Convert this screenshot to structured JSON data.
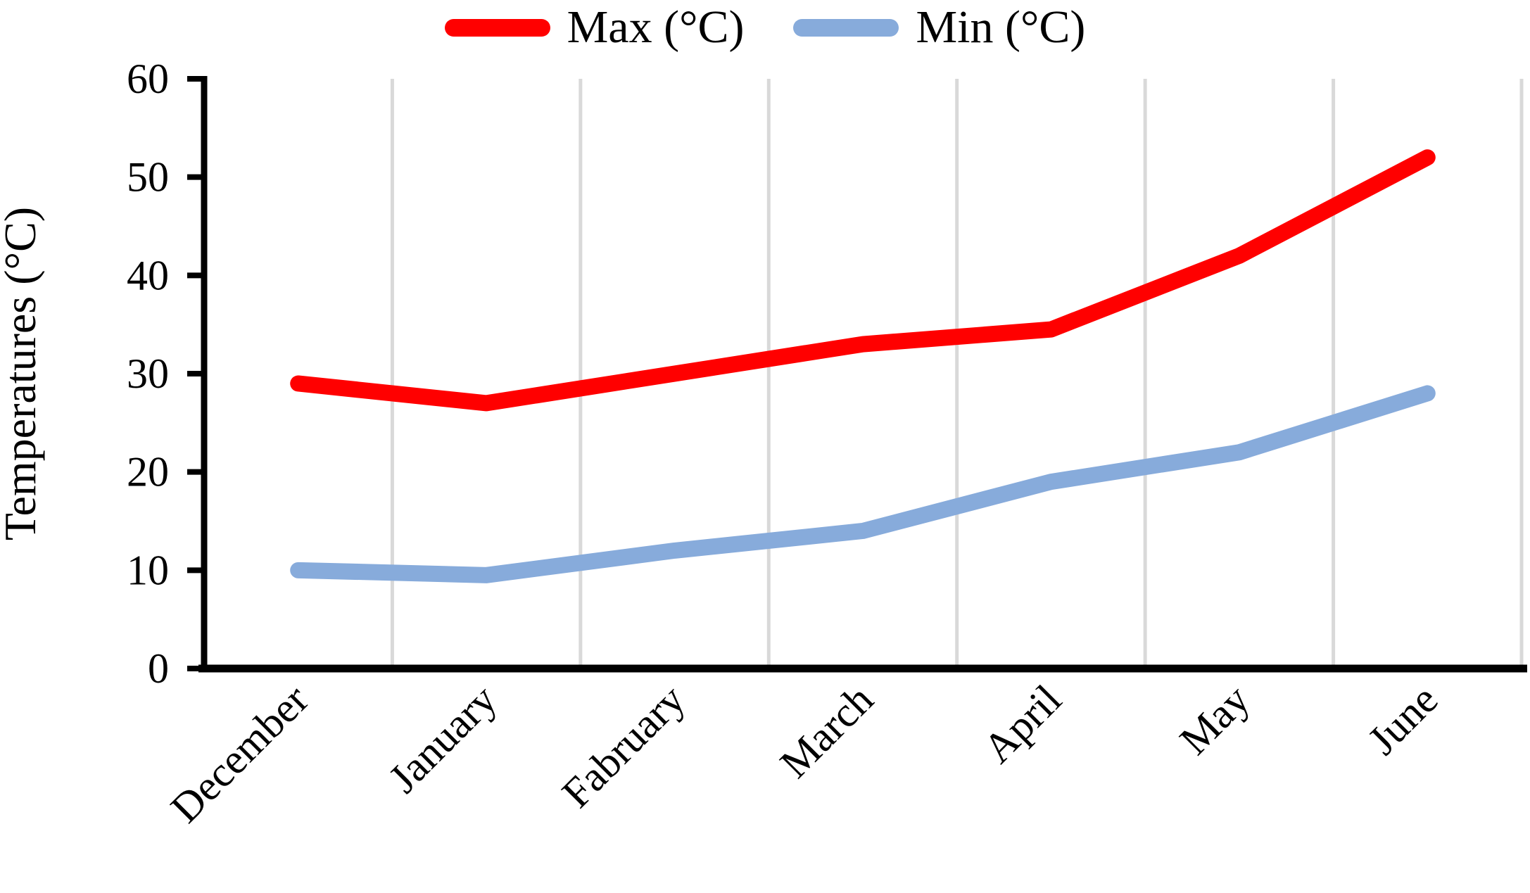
{
  "chart_data": {
    "type": "line",
    "title": "",
    "categories": [
      "December",
      "January",
      "Fabruary",
      "March",
      "April",
      "May",
      "June"
    ],
    "series": [
      {
        "name": "Max (°C)",
        "color": "#ff0000",
        "values": [
          29,
          27,
          30,
          33,
          34.5,
          42,
          52
        ]
      },
      {
        "name": "Min (°C)",
        "color": "#87abdb",
        "values": [
          10,
          9.5,
          12,
          14,
          19,
          22,
          28
        ]
      }
    ],
    "xlabel": "",
    "ylabel": "Temperatures (°C)",
    "ylim": [
      0,
      60
    ],
    "yticks": [
      0,
      10,
      20,
      30,
      40,
      50,
      60
    ],
    "grid": "vertical-between-categories",
    "legend_position": "top",
    "x_label_rotation_deg": 45,
    "colors": {
      "gridline": "#d9d9d9",
      "axis": "#000000",
      "text": "#000000",
      "background": "#ffffff"
    }
  }
}
